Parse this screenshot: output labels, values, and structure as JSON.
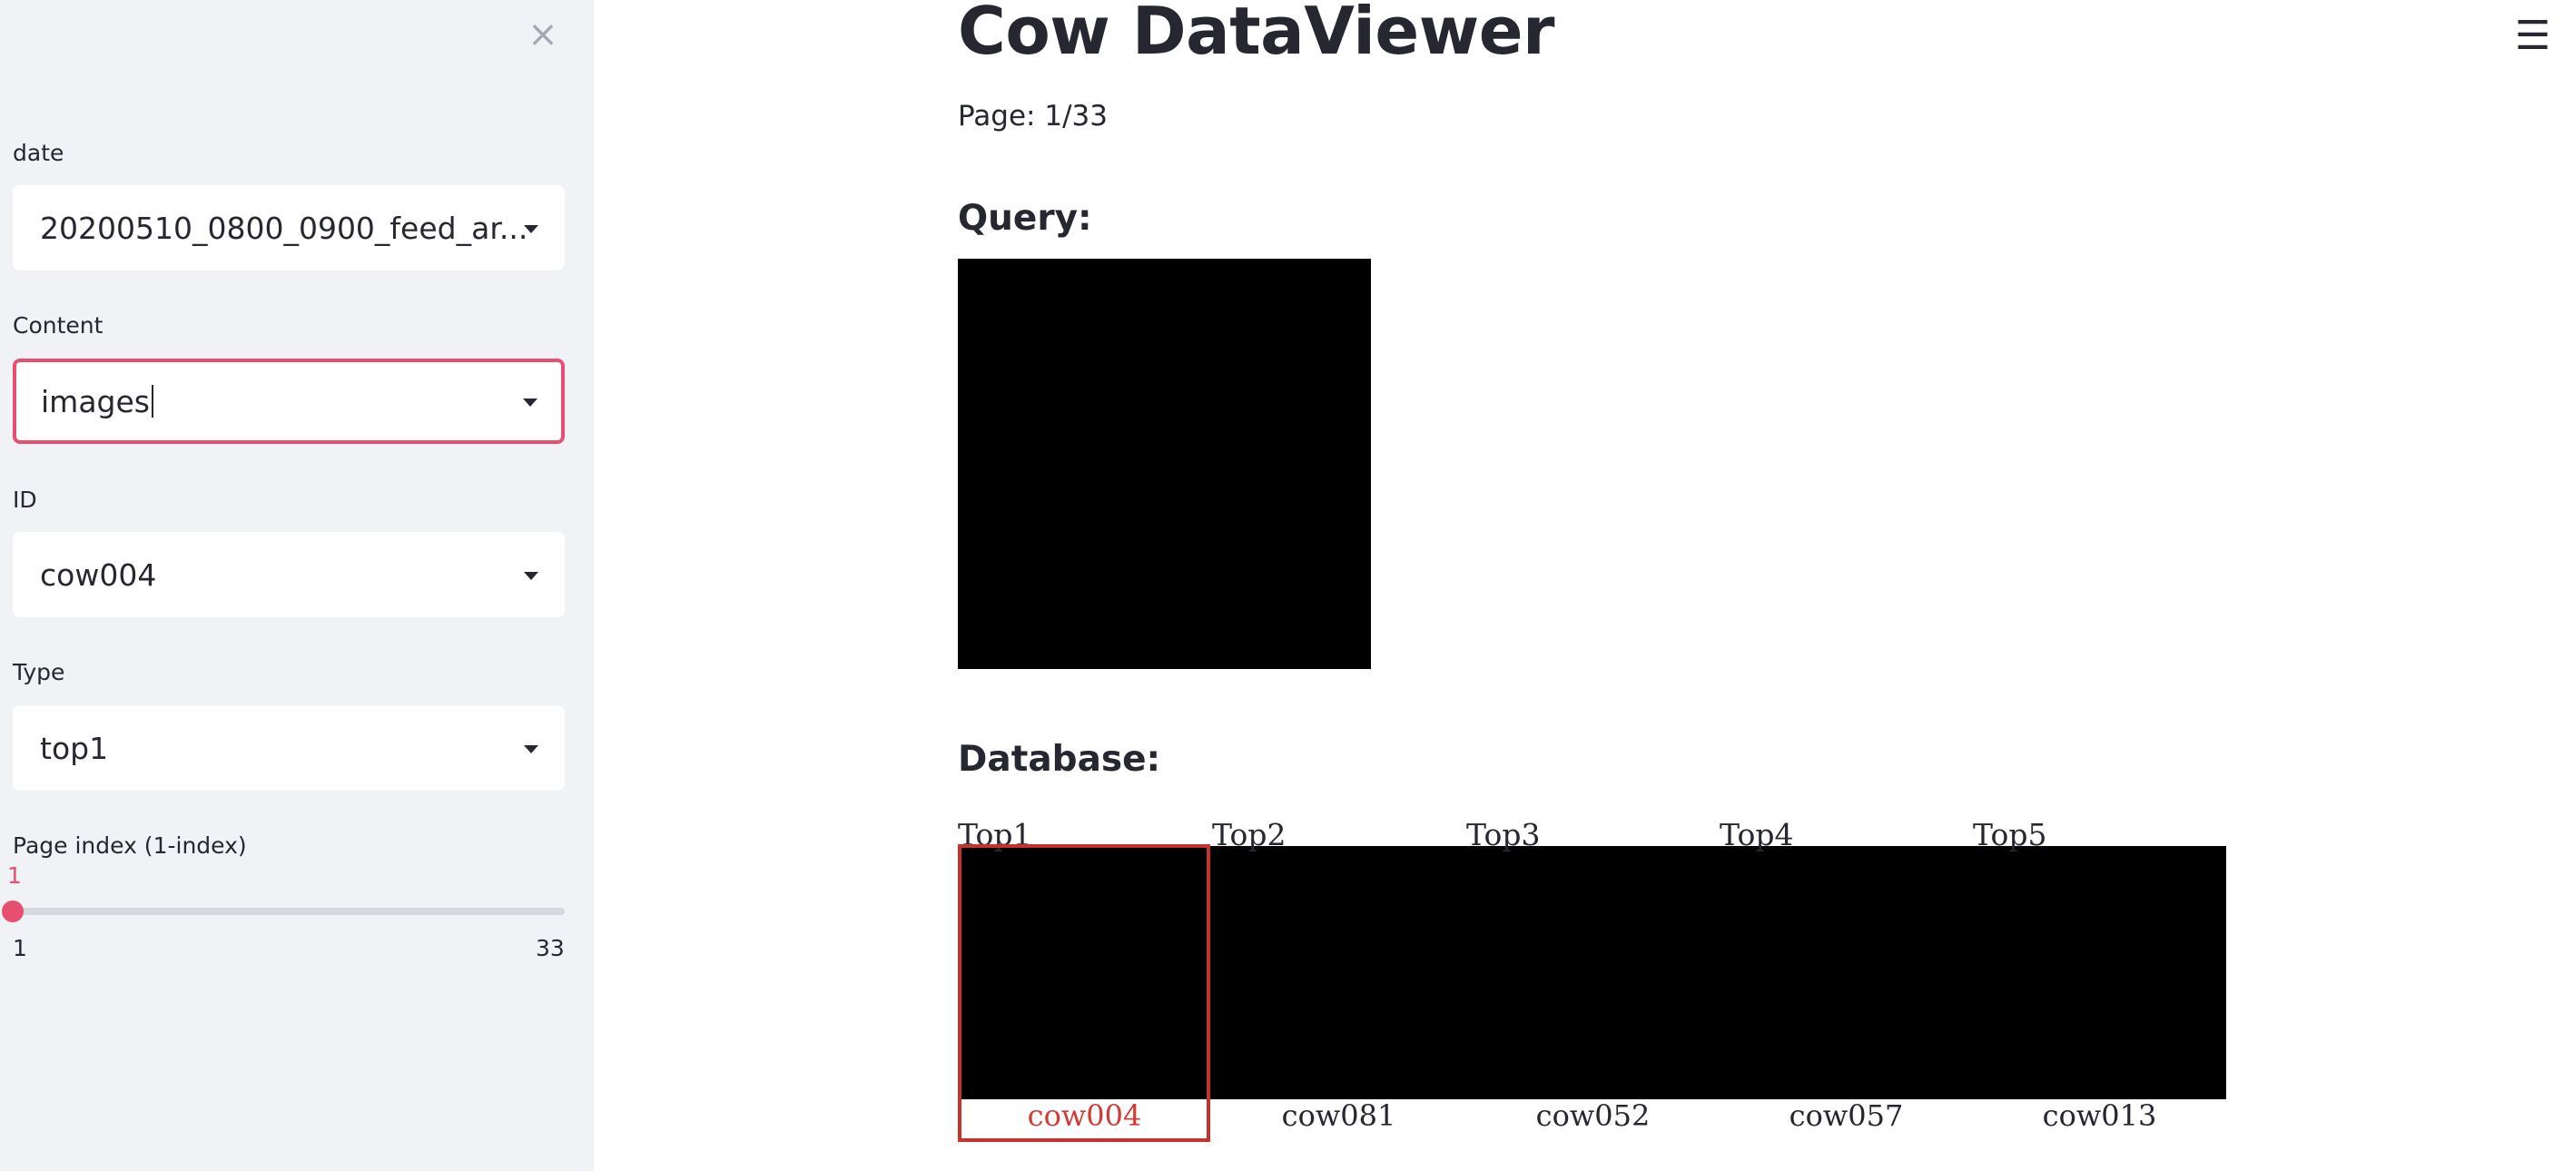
{
  "sidebar": {
    "close_icon": "close-icon",
    "fields": [
      {
        "label": "date",
        "value": "20200510_0800_0900_feed_ar..."
      },
      {
        "label": "Content",
        "value": "images"
      },
      {
        "label": "ID",
        "value": "cow004"
      },
      {
        "label": "Type",
        "value": "top1"
      }
    ],
    "slider": {
      "label": "Page index (1-index)",
      "current": "1",
      "min": "1",
      "max": "33",
      "progress": 0
    }
  },
  "header": {
    "menu_icon": "hamburger-menu-icon",
    "menu_glyph": "☰"
  },
  "main": {
    "title": "Cow DataViewer",
    "page_indicator": "Page: 1/33",
    "query_heading": "Query:",
    "database_heading": "Database:",
    "results": [
      {
        "rank": "Top1",
        "id": "cow004",
        "match": true
      },
      {
        "rank": "Top2",
        "id": "cow081",
        "match": false
      },
      {
        "rank": "Top3",
        "id": "cow052",
        "match": false
      },
      {
        "rank": "Top4",
        "id": "cow057",
        "match": false
      },
      {
        "rank": "Top5",
        "id": "cow013",
        "match": false
      }
    ]
  },
  "colors": {
    "accent": "#e64f6f",
    "sidebar_bg": "#f0f2f6",
    "match_border": "#c8322c"
  }
}
